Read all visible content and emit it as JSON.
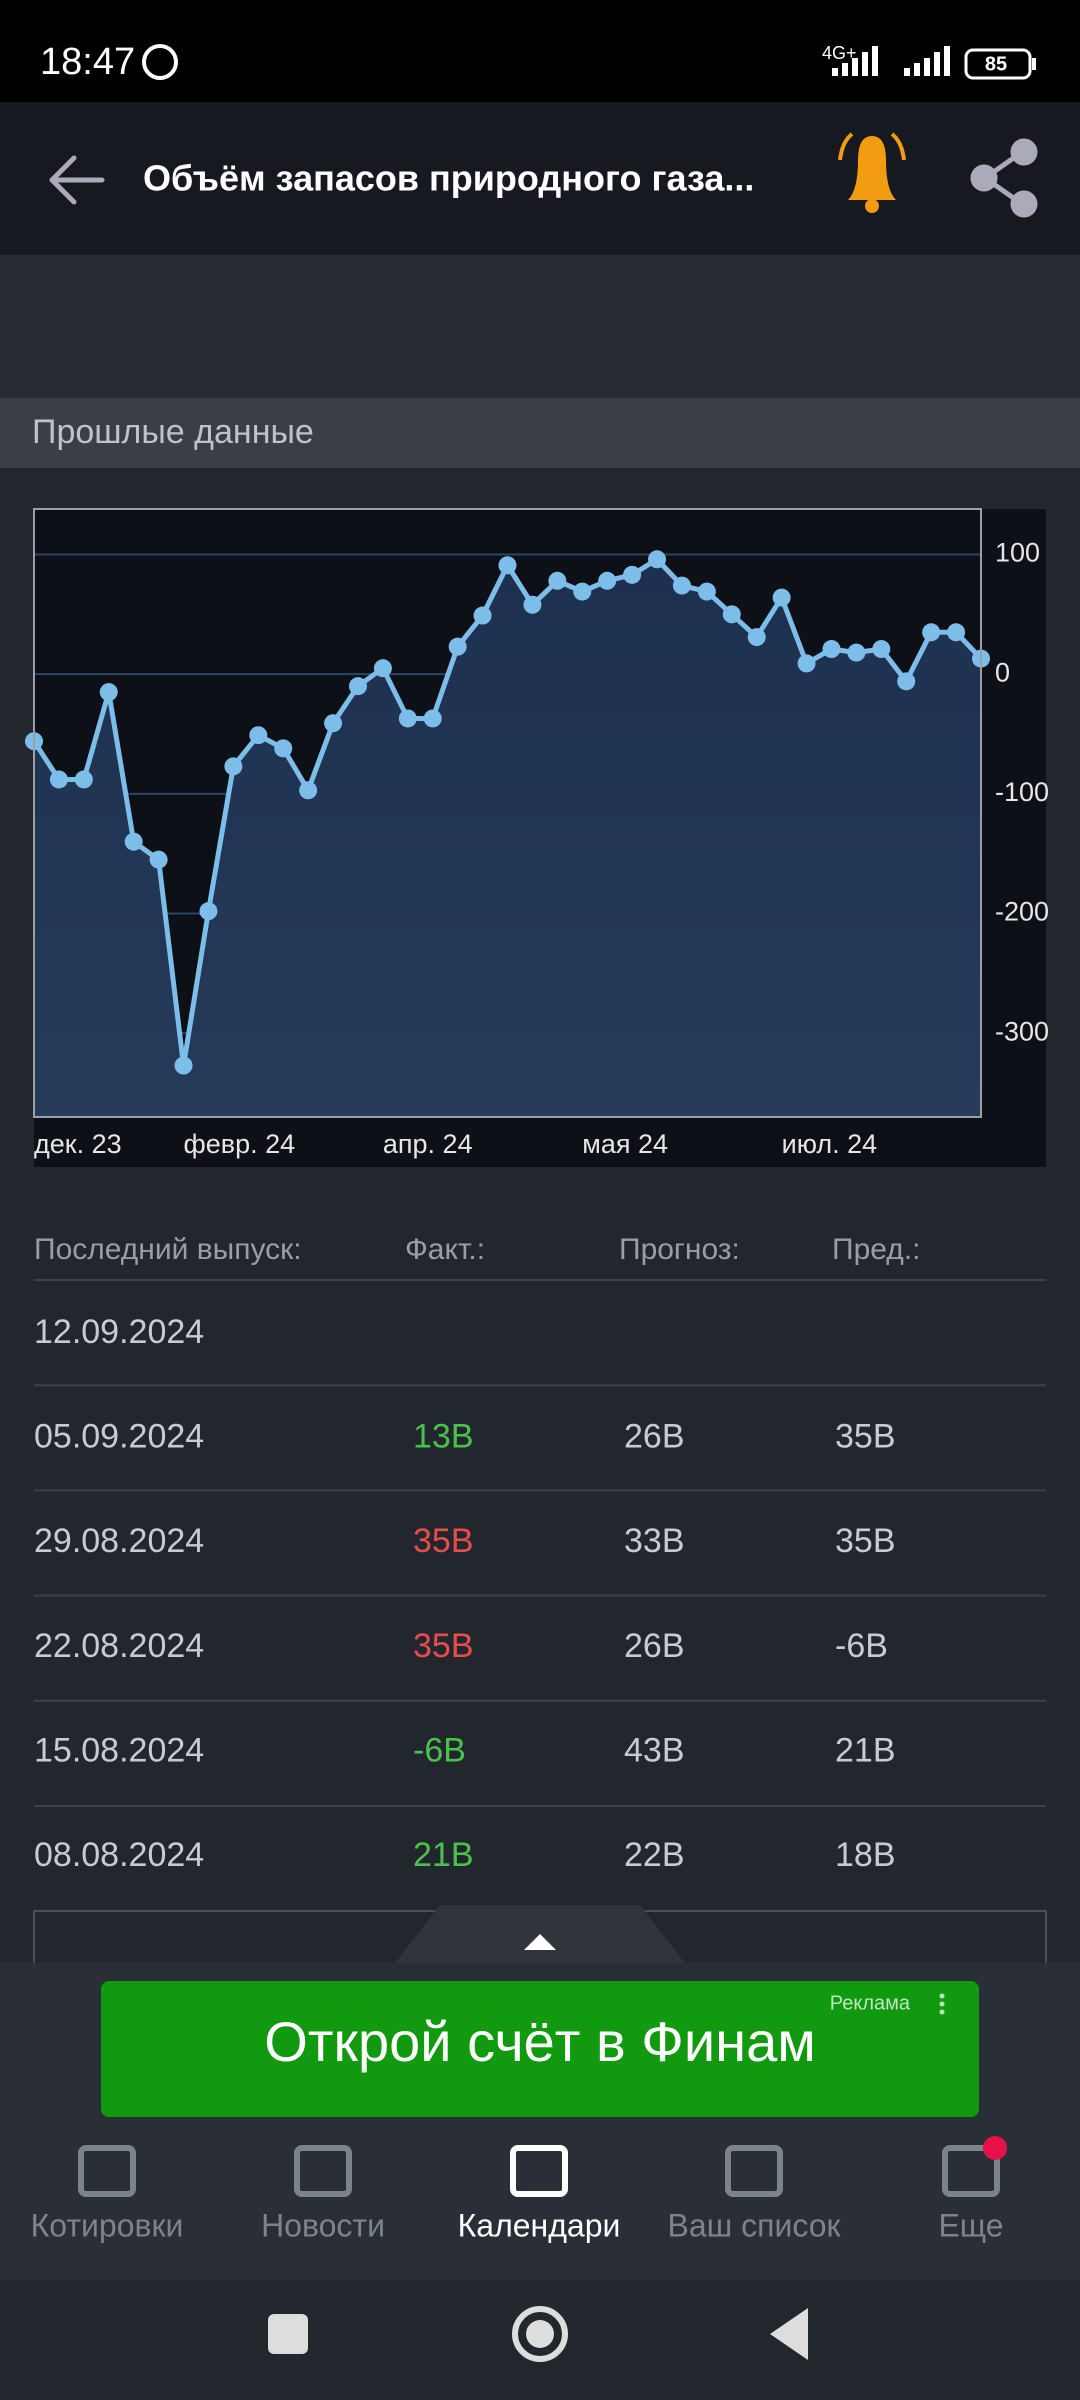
{
  "status_bar": {
    "time": "18:47",
    "network": "4G+",
    "battery": "85"
  },
  "header": {
    "title": "Объём запасов природного газа..."
  },
  "section_title": "Прошлые данные",
  "chart_data": {
    "type": "line",
    "categories": [
      "дек. 23",
      null,
      null,
      null,
      null,
      null,
      "февр. 24",
      null,
      null,
      null,
      null,
      null,
      null,
      null,
      "апр. 24",
      null,
      null,
      null,
      null,
      null,
      null,
      null,
      "мая 24",
      null,
      null,
      null,
      null,
      null,
      null,
      null,
      "июл. 24",
      null,
      null,
      null,
      null,
      null,
      null,
      null,
      null
    ],
    "series": [
      {
        "color": "#7cbde9",
        "values": [
          -56,
          -88,
          -88,
          -15,
          -140,
          -155,
          -327,
          -198,
          -77,
          -51,
          -62,
          -97,
          -41,
          -10,
          5,
          -37,
          -37,
          23,
          49,
          91,
          58,
          78,
          69,
          78,
          83,
          96,
          74,
          69,
          50,
          31,
          64,
          9,
          21,
          18,
          21,
          -6,
          35,
          35,
          13
        ]
      }
    ],
    "ylim": [
      -370,
      138
    ],
    "yticks": [
      100,
      0,
      -100,
      -200,
      -300
    ],
    "grid": true
  },
  "table": {
    "columns": [
      "Последний выпуск:",
      "Факт.:",
      "Прогноз:",
      "Пред.:"
    ],
    "rows": [
      {
        "date": "12.09.2024"
      },
      {
        "date": "05.09.2024",
        "actual": "13B",
        "forecast": "26B",
        "previous": "35B",
        "actual_color": "#4cc04c"
      },
      {
        "date": "29.08.2024",
        "actual": "35B",
        "forecast": "33B",
        "previous": "35B",
        "actual_color": "#e84c4c"
      },
      {
        "date": "22.08.2024",
        "actual": "35B",
        "forecast": "26B",
        "previous": "-6B",
        "actual_color": "#e84c4c"
      },
      {
        "date": "15.08.2024",
        "actual": "-6B",
        "forecast": "43B",
        "previous": "21B",
        "actual_color": "#4cc04c"
      },
      {
        "date": "08.08.2024",
        "actual": "21B",
        "forecast": "22B",
        "previous": "18B",
        "actual_color": "#4cc04c"
      }
    ]
  },
  "ad": {
    "label": "Реклама",
    "text": "Открой счёт в Финам"
  },
  "nav": {
    "items": [
      "Котировки",
      "Новости",
      "Календари",
      "Ваш список",
      "Еще"
    ],
    "active": 2
  }
}
